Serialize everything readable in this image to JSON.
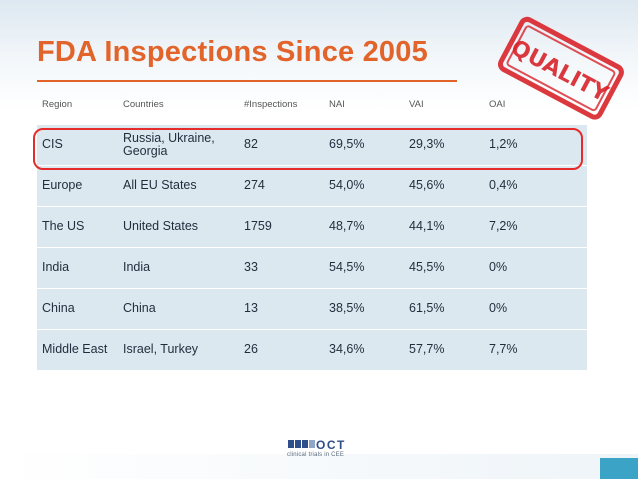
{
  "title": "FDA Inspections Since 2005",
  "table": {
    "headers": [
      "Region",
      "Countries",
      "#Inspections",
      "NAI",
      "VAI",
      "OAI"
    ],
    "rows": [
      [
        "CIS",
        "Russia, Ukraine, Georgia",
        "82",
        "69,5%",
        "29,3%",
        "1,2%"
      ],
      [
        "Europe",
        "All EU States",
        "274",
        "54,0%",
        "45,6%",
        "0,4%"
      ],
      [
        "The US",
        "United States",
        "1759",
        "48,7%",
        "44,1%",
        "7,2%"
      ],
      [
        "India",
        "India",
        "33",
        "54,5%",
        "45,5%",
        "0%"
      ],
      [
        "China",
        "China",
        "13",
        "38,5%",
        "61,5%",
        "0%"
      ],
      [
        "Middle East",
        "Israel, Turkey",
        "26",
        "34,6%",
        "57,7%",
        "7,7%"
      ]
    ]
  },
  "stamp": {
    "text": "QUALITY",
    "color": "#d8232a"
  },
  "logo": {
    "name": "OCT",
    "tagline": "clinical trials in CEE",
    "color": "#2f4f8a"
  },
  "colors": {
    "title": "#e2642b",
    "row_fill": "#dbe8ef",
    "highlight": "#e52b2b",
    "accent_tab": "#3ba3c6"
  }
}
